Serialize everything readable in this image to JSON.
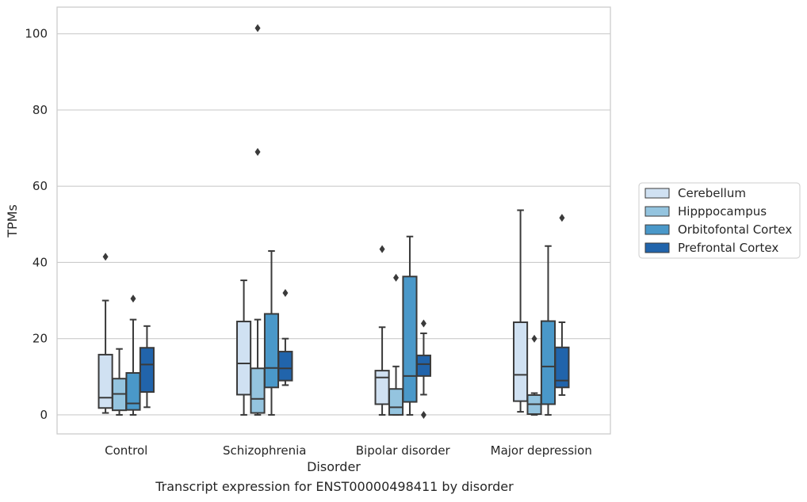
{
  "caption": "Transcript expression for ENST00000498411 by disorder",
  "chart_data": {
    "type": "box",
    "title": "",
    "xlabel": "Disorder",
    "ylabel": "TPMs",
    "ylim": [
      -5,
      107
    ],
    "yticks": [
      0,
      20,
      40,
      60,
      80,
      100
    ],
    "grid": "horizontal",
    "legend_position": "right",
    "categories": [
      "Control",
      "Schizophrenia",
      "Bipolar disorder",
      "Major depression"
    ],
    "series": [
      {
        "name": "Cerebellum",
        "color": "#d0e1f2",
        "boxes": [
          {
            "whisker_low": 0.5,
            "q1": 1.8,
            "median": 4.5,
            "q3": 15.8,
            "whisker_high": 30,
            "outliers": [
              41.5
            ]
          },
          {
            "whisker_low": 0,
            "q1": 5.3,
            "median": 13.5,
            "q3": 24.5,
            "whisker_high": 35.3,
            "outliers": []
          },
          {
            "whisker_low": 0,
            "q1": 2.8,
            "median": 9.8,
            "q3": 11.6,
            "whisker_high": 23,
            "outliers": [
              43.5
            ]
          },
          {
            "whisker_low": 0.8,
            "q1": 3.6,
            "median": 10.5,
            "q3": 24.3,
            "whisker_high": 53.7,
            "outliers": []
          }
        ]
      },
      {
        "name": "Hipppocampus",
        "color": "#94c4df",
        "boxes": [
          {
            "whisker_low": 0,
            "q1": 1.2,
            "median": 5.5,
            "q3": 9.5,
            "whisker_high": 17.3,
            "outliers": []
          },
          {
            "whisker_low": 0,
            "q1": 0.5,
            "median": 4.2,
            "q3": 12.2,
            "whisker_high": 25,
            "outliers": [
              69,
              101.5
            ]
          },
          {
            "whisker_low": 0,
            "q1": 0,
            "median": 2,
            "q3": 6.8,
            "whisker_high": 12.7,
            "outliers": [
              36
            ]
          },
          {
            "whisker_low": 0,
            "q1": 0.2,
            "median": 2.8,
            "q3": 5.2,
            "whisker_high": 5.7,
            "outliers": [
              20
            ]
          }
        ]
      },
      {
        "name": "Orbitofontal Cortex",
        "color": "#4a98c9",
        "boxes": [
          {
            "whisker_low": 0,
            "q1": 1.3,
            "median": 3,
            "q3": 11,
            "whisker_high": 25,
            "outliers": [
              30.5
            ]
          },
          {
            "whisker_low": 0,
            "q1": 7.2,
            "median": 12.3,
            "q3": 26.5,
            "whisker_high": 43,
            "outliers": []
          },
          {
            "whisker_low": 0,
            "q1": 3.4,
            "median": 10.2,
            "q3": 36.3,
            "whisker_high": 46.8,
            "outliers": []
          },
          {
            "whisker_low": 0,
            "q1": 2.8,
            "median": 12.7,
            "q3": 24.6,
            "whisker_high": 44.3,
            "outliers": []
          }
        ]
      },
      {
        "name": "Prefrontal Cortex",
        "color": "#2164ab",
        "boxes": [
          {
            "whisker_low": 2,
            "q1": 6,
            "median": 13.2,
            "q3": 17.6,
            "whisker_high": 23.3,
            "outliers": []
          },
          {
            "whisker_low": 7.8,
            "q1": 9,
            "median": 12.2,
            "q3": 16.6,
            "whisker_high": 20,
            "outliers": [
              32
            ]
          },
          {
            "whisker_low": 5.3,
            "q1": 10.2,
            "median": 13.3,
            "q3": 15.6,
            "whisker_high": 21.4,
            "outliers": [
              0,
              24
            ]
          },
          {
            "whisker_low": 5.2,
            "q1": 7.2,
            "median": 9,
            "q3": 17.7,
            "whisker_high": 24.3,
            "outliers": [
              51.7
            ]
          }
        ]
      }
    ]
  }
}
